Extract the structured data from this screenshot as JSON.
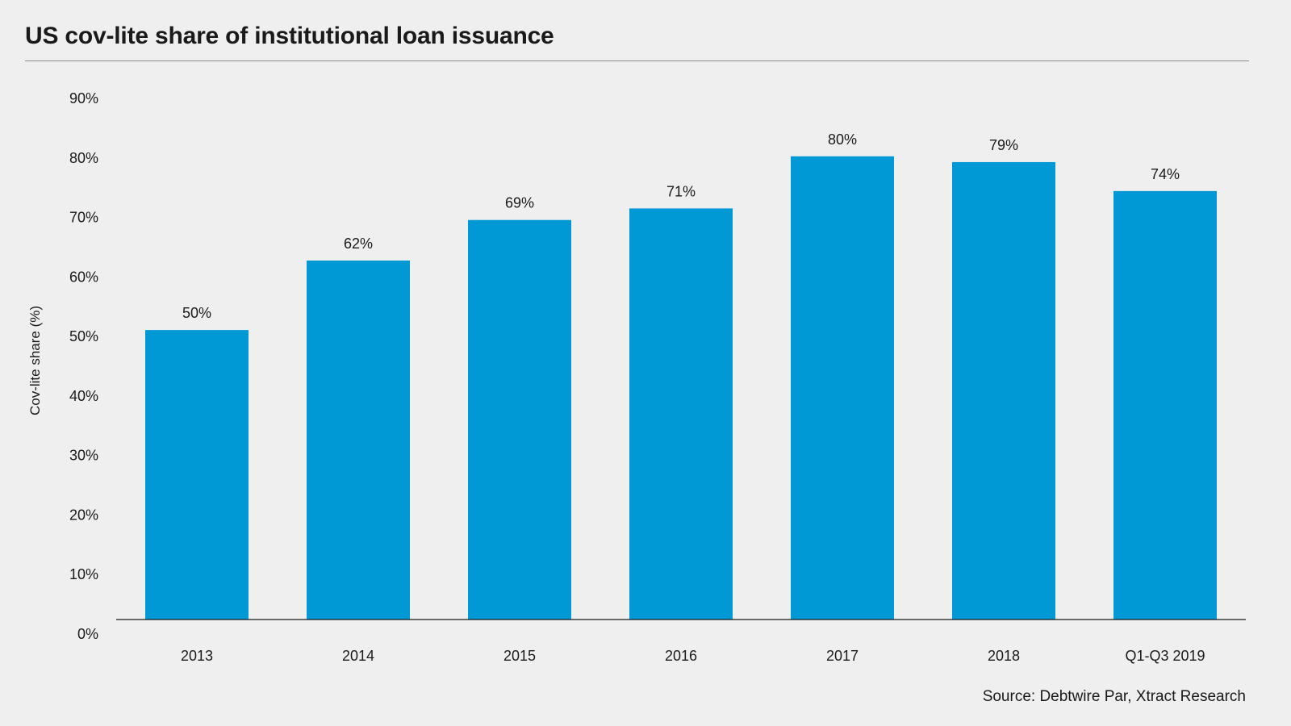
{
  "colors": {
    "background": "#efefef",
    "bar": "#0099d5",
    "text": "#1a1a1a",
    "axis": "#1a1a1a"
  },
  "chart_data": {
    "type": "bar",
    "title": "US cov-lite share of institutional loan issuance",
    "xlabel": "",
    "ylabel": "Cov-lite share (%)",
    "categories": [
      "2013",
      "2014",
      "2015",
      "2016",
      "2017",
      "2018",
      "Q1-Q3 2019"
    ],
    "values": [
      50,
      62,
      69,
      71,
      80,
      79,
      74
    ],
    "data_labels": [
      "50%",
      "62%",
      "69%",
      "71%",
      "80%",
      "79%",
      "74%"
    ],
    "ylim": [
      0,
      90
    ],
    "yticks": [
      0,
      10,
      20,
      30,
      40,
      50,
      60,
      70,
      80,
      90
    ],
    "ytick_labels": [
      "0%",
      "10%",
      "20%",
      "30%",
      "40%",
      "50%",
      "60%",
      "70%",
      "80%",
      "90%"
    ],
    "grid": false,
    "legend": "none"
  },
  "source": "Source: Debtwire Par, Xtract Research"
}
